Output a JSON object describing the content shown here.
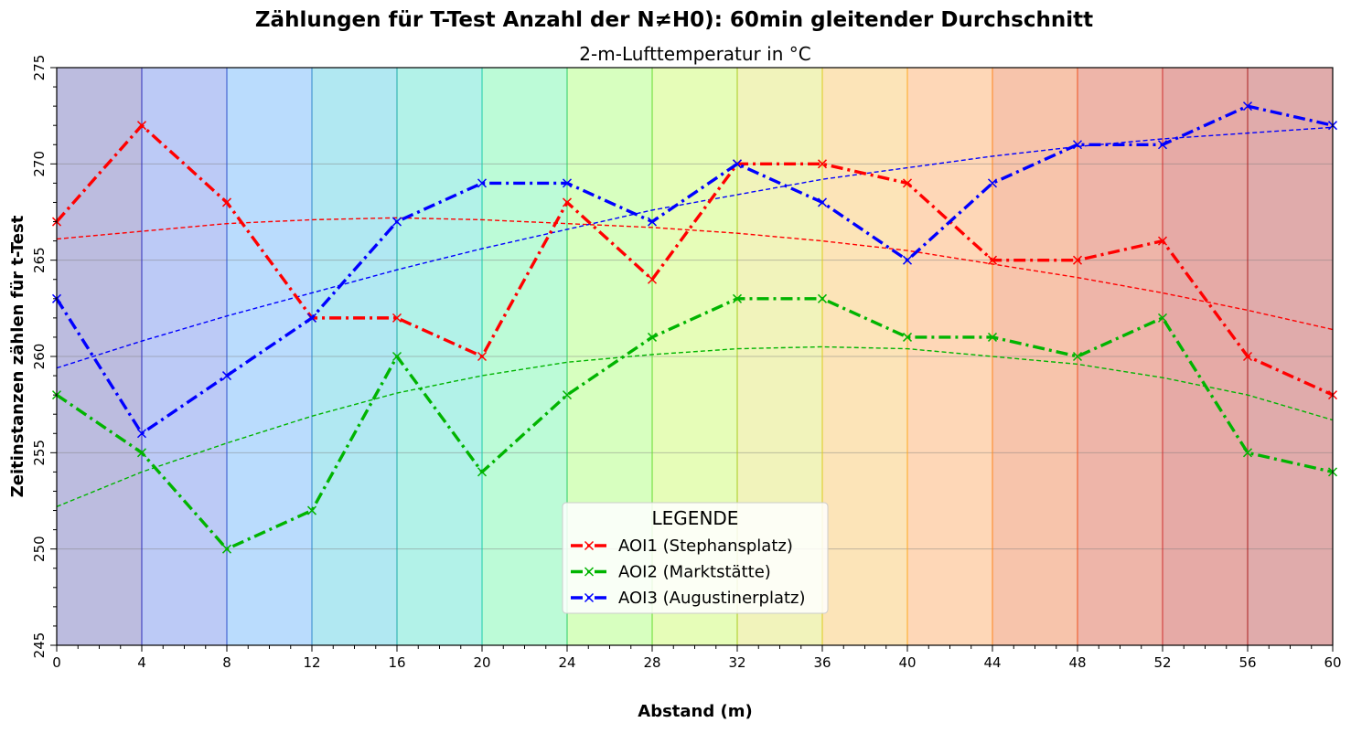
{
  "chart_data": {
    "type": "line",
    "title": "Zählungen für T-Test Anzahl der N≠H0): 60min gleitender Durchschnitt",
    "subtitle": "2-m-Lufttemperatur in °C",
    "xlabel": "Abstand (m)",
    "ylabel": "Zeitinstanzen zählen für t-Test",
    "xlim": [
      0,
      60
    ],
    "ylim": [
      245,
      275
    ],
    "x_ticks": [
      "0",
      "4",
      "8",
      "12",
      "16",
      "20",
      "24",
      "28",
      "32",
      "36",
      "40",
      "44",
      "48",
      "52",
      "56",
      "60"
    ],
    "y_ticks": [
      "245",
      "250",
      "255",
      "260",
      "265",
      "270",
      "275"
    ],
    "grid": "horizontal",
    "legend_title": "LEGENDE",
    "legend_position": "bottom-center",
    "x": [
      0,
      4,
      8,
      12,
      16,
      20,
      24,
      28,
      32,
      36,
      40,
      44,
      48,
      52,
      56,
      60
    ],
    "series": [
      {
        "name": "AOI1 (Stephansplatz)",
        "color": "#ff0000",
        "values": [
          267,
          272,
          268,
          262,
          262,
          260,
          268,
          264,
          270,
          270,
          269,
          265,
          265,
          266,
          260,
          258
        ],
        "trend": [
          266.1,
          266.5,
          266.9,
          267.1,
          267.2,
          267.1,
          266.9,
          266.7,
          266.4,
          266.0,
          265.5,
          264.8,
          264.1,
          263.3,
          262.4,
          261.4
        ]
      },
      {
        "name": "AOI2 (Marktstätte)",
        "color": "#00b400",
        "values": [
          258,
          255,
          250,
          252,
          260,
          254,
          258,
          261,
          263,
          263,
          261,
          261,
          260,
          262,
          255,
          254
        ],
        "trend": [
          252.2,
          254.0,
          255.5,
          256.9,
          258.1,
          259.0,
          259.7,
          260.1,
          260.4,
          260.5,
          260.4,
          260.0,
          259.6,
          258.9,
          258.0,
          256.7
        ]
      },
      {
        "name": "AOI3 (Augustinerplatz)",
        "color": "#0000ff",
        "values": [
          263,
          256,
          259,
          262,
          267,
          269,
          269,
          267,
          270,
          268,
          265,
          269,
          271,
          271,
          273,
          272
        ],
        "trend": [
          259.4,
          260.8,
          262.1,
          263.3,
          264.5,
          265.6,
          266.6,
          267.6,
          268.4,
          269.2,
          269.8,
          270.4,
          270.9,
          271.3,
          271.6,
          271.9
        ]
      }
    ],
    "background_bands": [
      "#bcbcdf",
      "#bccaf6",
      "#badcfd",
      "#b1e8f2",
      "#b2f2e8",
      "#bcfbd7",
      "#d7ffbf",
      "#e6fdb8",
      "#f1f3bb",
      "#fce4b8",
      "#fed7b7",
      "#f7c4ab",
      "#eeb5a9",
      "#e6aaa6",
      "#e0abab"
    ],
    "band_dividers": [
      "#3333bb",
      "#3355cc",
      "#3388cc",
      "#22aaaa",
      "#22ccaa",
      "#33cc66",
      "#66dd33",
      "#aacc22",
      "#ddcc22",
      "#ffaa22",
      "#ff8822",
      "#ee5522",
      "#cc3333",
      "#aa2222"
    ]
  }
}
